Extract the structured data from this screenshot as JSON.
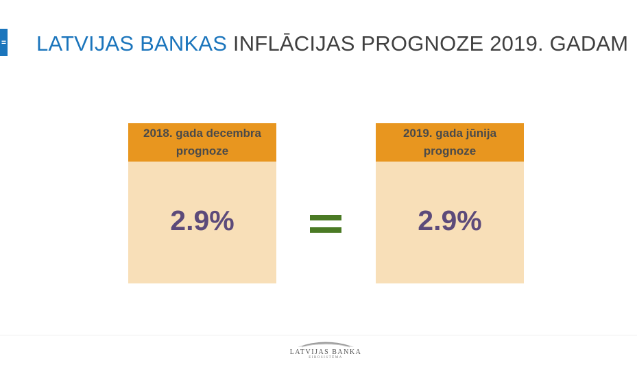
{
  "side_tab": {
    "glyph": "="
  },
  "title": {
    "accent": "LATVIJAS BANKAS",
    "rest": " INFLĀCIJAS PROGNOZE 2019. GADAM"
  },
  "cards": [
    {
      "header": "2018. gada decembra prognoze",
      "value": "2.9%"
    },
    {
      "header": "2019. gada jūnija prognoze",
      "value": "2.9%"
    }
  ],
  "comparison": {
    "symbol": "equals-sign",
    "color": "#4a7a24"
  },
  "colors": {
    "title_accent": "#1b75bc",
    "title_text": "#404040",
    "card_header": "#e8961f",
    "card_body": "#f8dfb8",
    "value_text": "#5c4a7a"
  },
  "logo": {
    "name": "LATVIJAS BANKA",
    "subtitle": "EIROSISTĒMA"
  }
}
